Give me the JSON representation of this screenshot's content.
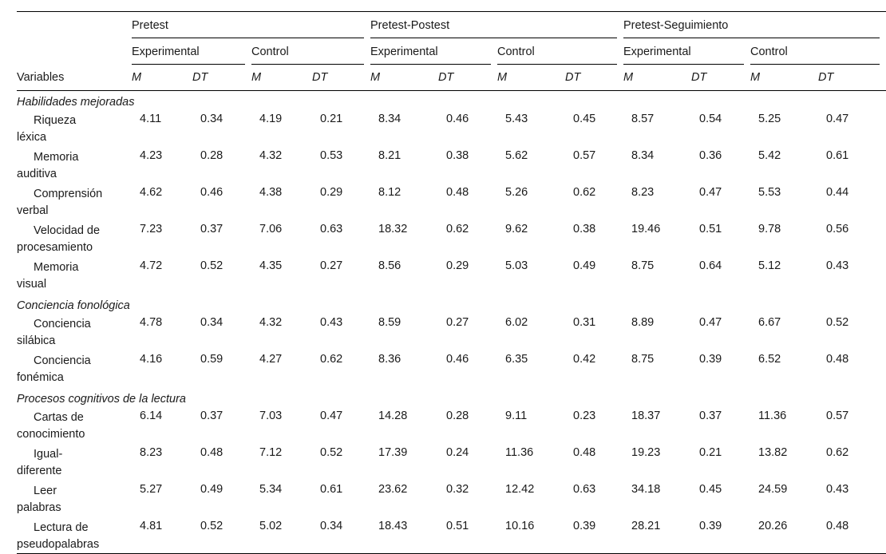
{
  "header": {
    "variables_label": "Variables",
    "groups": [
      "Pretest",
      "Pretest-Postest",
      "Pretest-Seguimiento"
    ],
    "subgroups": [
      "Experimental",
      "Control",
      "Experimental",
      "Control",
      "Experimental",
      "Control"
    ],
    "stats": [
      "M",
      "DT",
      "M",
      "DT",
      "M",
      "DT",
      "M",
      "DT",
      "M",
      "DT",
      "M",
      "DT"
    ]
  },
  "sections": [
    {
      "title": "Habilidades mejoradas",
      "rows": [
        {
          "line1": "Riqueza",
          "line2": "léxica",
          "values": [
            "4.11",
            "0.34",
            "4.19",
            "0.21",
            "8.34",
            "0.46",
            "5.43",
            "0.45",
            "8.57",
            "0.54",
            "5.25",
            "0.47"
          ]
        },
        {
          "line1": "Memoria",
          "line2": "auditiva",
          "values": [
            "4.23",
            "0.28",
            "4.32",
            "0.53",
            "8.21",
            "0.38",
            "5.62",
            "0.57",
            "8.34",
            "0.36",
            "5.42",
            "0.61"
          ]
        },
        {
          "line1": "Comprensión",
          "line2": "verbal",
          "values": [
            "4.62",
            "0.46",
            "4.38",
            "0.29",
            "8.12",
            "0.48",
            "5.26",
            "0.62",
            "8.23",
            "0.47",
            "5.53",
            "0.44"
          ]
        },
        {
          "line1": "Velocidad de",
          "line2": "procesamiento",
          "values": [
            "7.23",
            "0.37",
            "7.06",
            "0.63",
            "18.32",
            "0.62",
            "9.62",
            "0.38",
            "19.46",
            "0.51",
            "9.78",
            "0.56"
          ]
        },
        {
          "line1": "Memoria",
          "line2": "visual",
          "values": [
            "4.72",
            "0.52",
            "4.35",
            "0.27",
            "8.56",
            "0.29",
            "5.03",
            "0.49",
            "8.75",
            "0.64",
            "5.12",
            "0.43"
          ]
        }
      ]
    },
    {
      "title": "Conciencia fonológica",
      "rows": [
        {
          "line1": "Conciencia",
          "line2": "silábica",
          "values": [
            "4.78",
            "0.34",
            "4.32",
            "0.43",
            "8.59",
            "0.27",
            "6.02",
            "0.31",
            "8.89",
            "0.47",
            "6.67",
            "0.52"
          ]
        },
        {
          "line1": "Conciencia",
          "line2": "fonémica",
          "values": [
            "4.16",
            "0.59",
            "4.27",
            "0.62",
            "8.36",
            "0.46",
            "6.35",
            "0.42",
            "8.75",
            "0.39",
            "6.52",
            "0.48"
          ]
        }
      ]
    },
    {
      "title": "Procesos cognitivos de la lectura",
      "rows": [
        {
          "line1": "Cartas de",
          "line2": "conocimiento",
          "values": [
            "6.14",
            "0.37",
            "7.03",
            "0.47",
            "14.28",
            "0.28",
            "9.11",
            "0.23",
            "18.37",
            "0.37",
            "11.36",
            "0.57"
          ]
        },
        {
          "line1": "Igual-",
          "line2": "diferente",
          "values": [
            "8.23",
            "0.48",
            "7.12",
            "0.52",
            "17.39",
            "0.24",
            "11.36",
            "0.48",
            "19.23",
            "0.21",
            "13.82",
            "0.62"
          ]
        },
        {
          "line1": "Leer",
          "line2": "palabras",
          "values": [
            "5.27",
            "0.49",
            "5.34",
            "0.61",
            "23.62",
            "0.32",
            "12.42",
            "0.63",
            "34.18",
            "0.45",
            "24.59",
            "0.43"
          ]
        },
        {
          "line1": "Lectura de",
          "line2": "pseudopalabras",
          "values": [
            "4.81",
            "0.52",
            "5.02",
            "0.34",
            "18.43",
            "0.51",
            "10.16",
            "0.39",
            "28.21",
            "0.39",
            "20.26",
            "0.48"
          ]
        }
      ]
    }
  ]
}
